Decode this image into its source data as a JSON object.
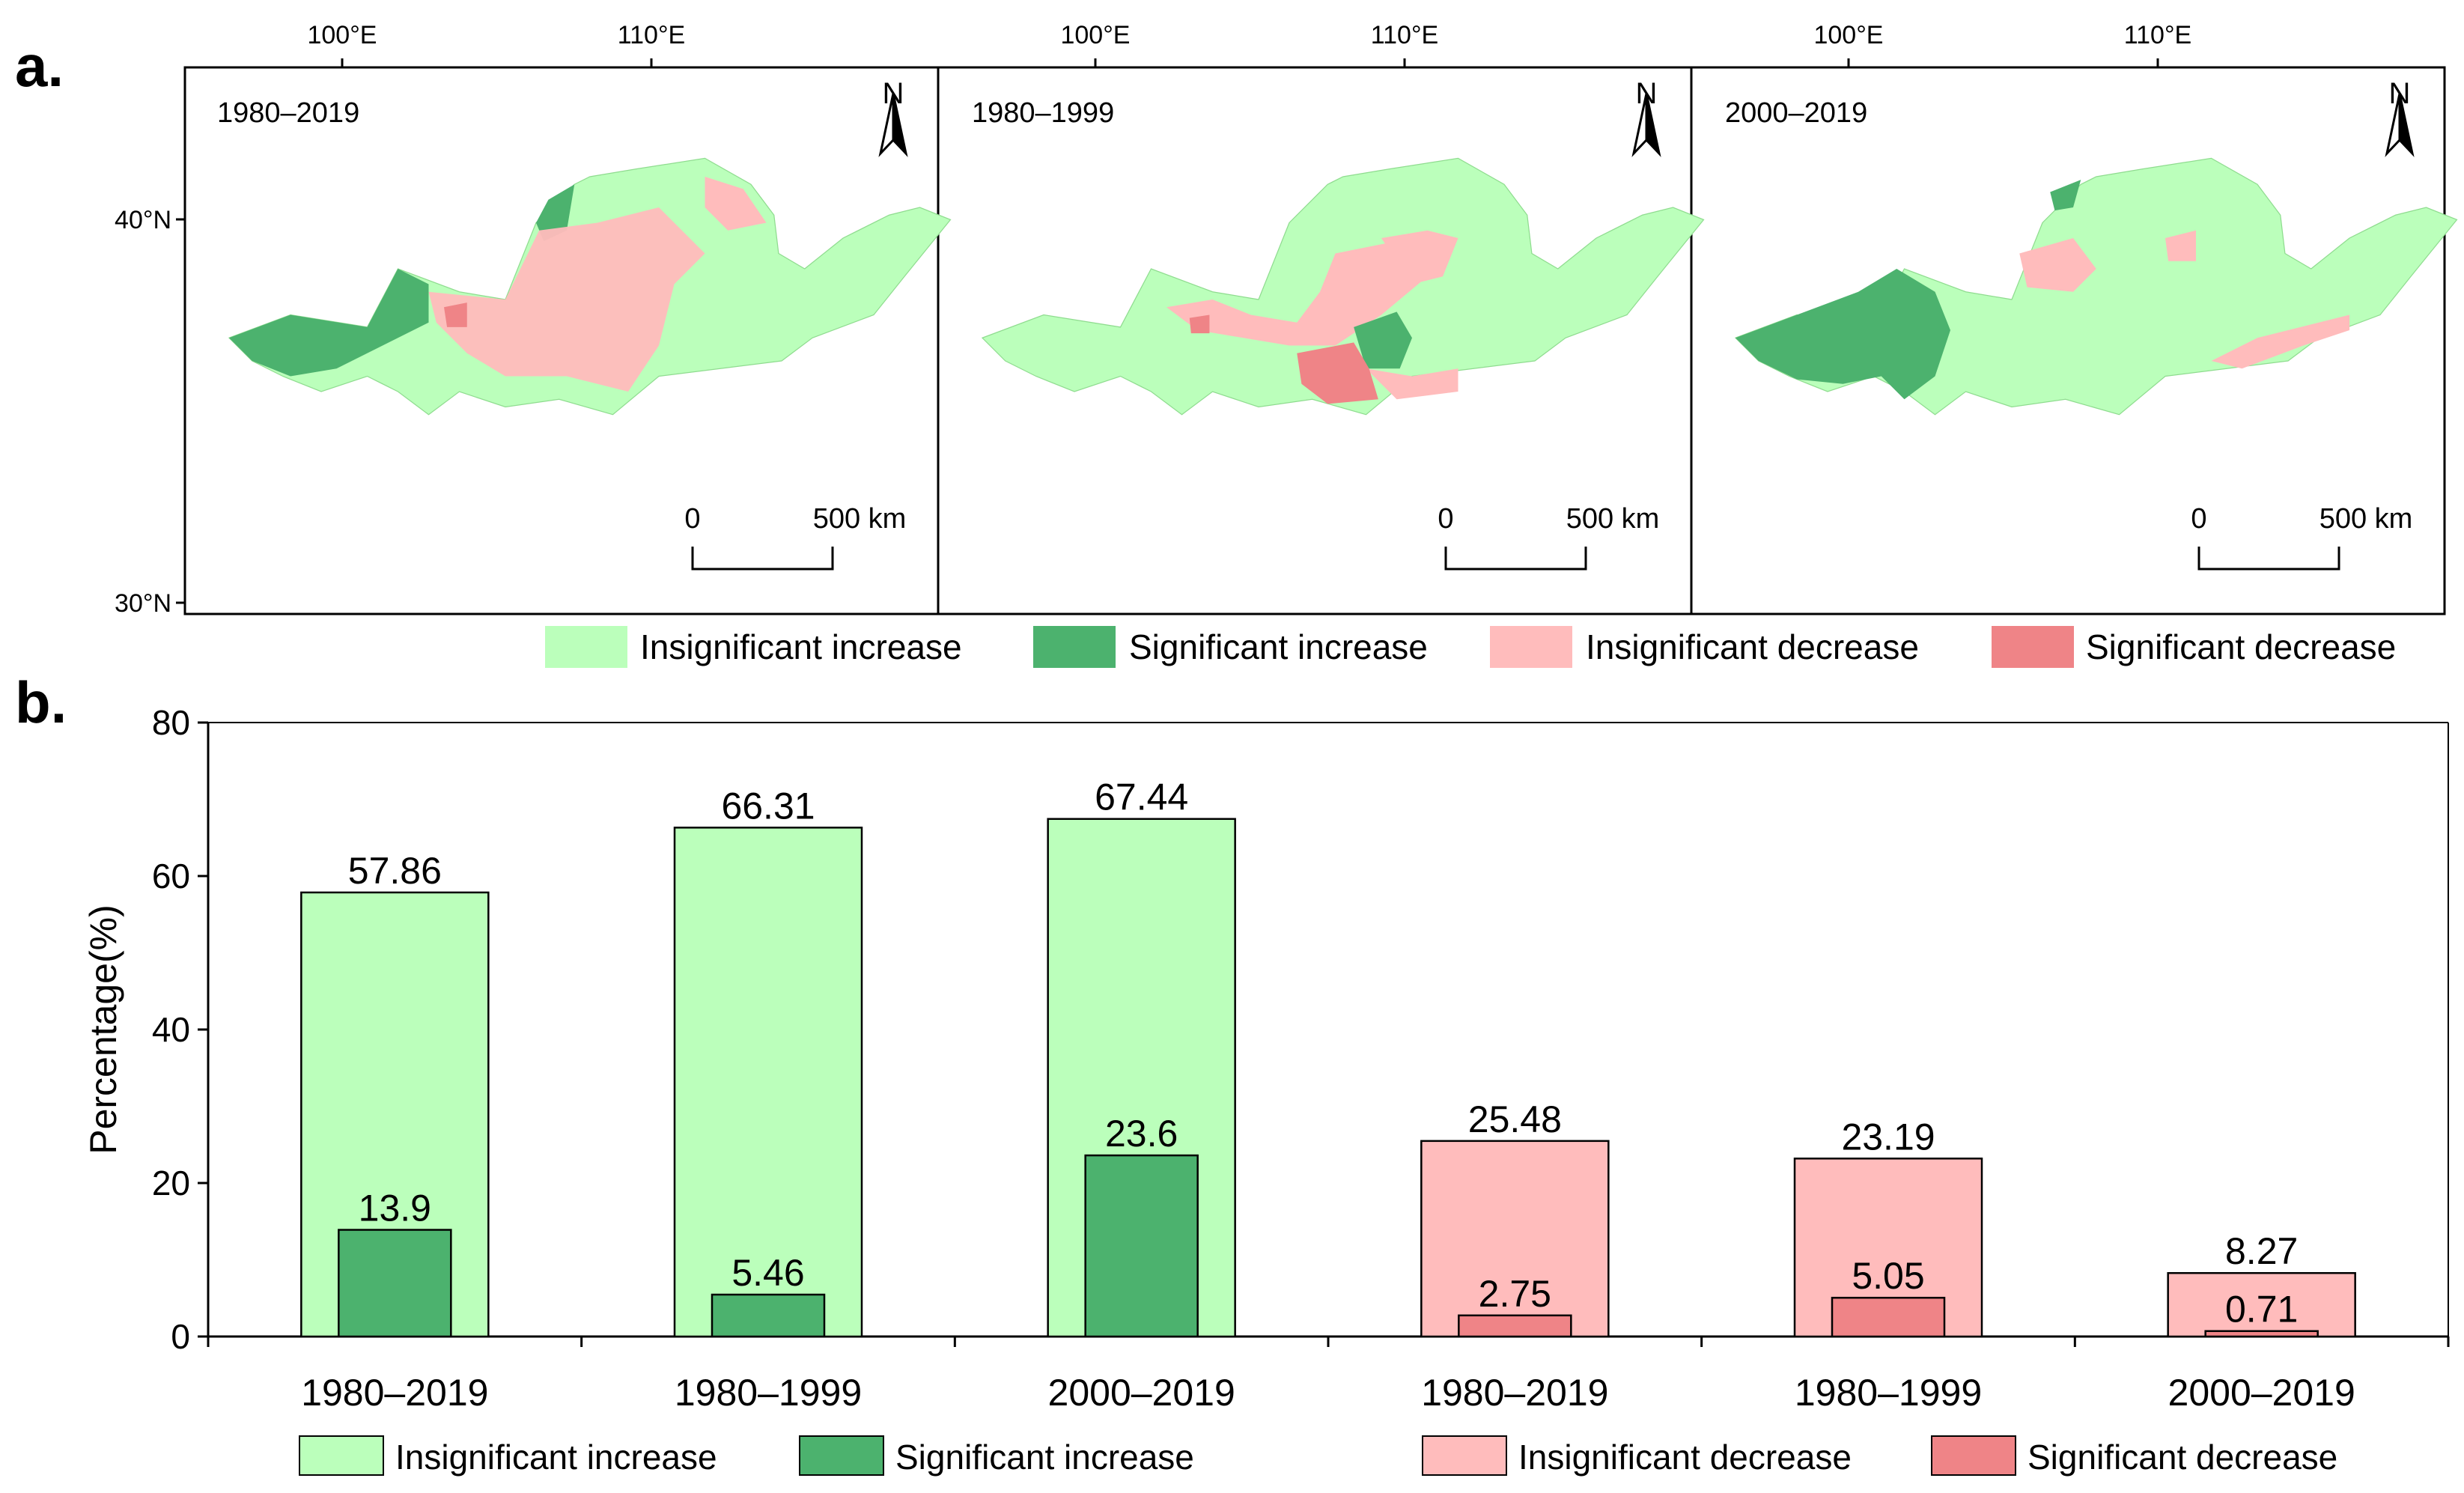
{
  "panel_a": {
    "label": "a.",
    "lon_ticks": [
      "100°E",
      "110°E"
    ],
    "lat_ticks": [
      "40°N",
      "30°N"
    ],
    "north_label": "N",
    "scale_zero": "0",
    "scale_end": "500 km",
    "maps": [
      {
        "period": "1980–2019"
      },
      {
        "period": "1980–1999"
      },
      {
        "period": "2000–2019"
      }
    ],
    "legend": [
      {
        "label": "Insignificant increase",
        "color": "#bbffbb"
      },
      {
        "label": "Significant increase",
        "color": "#4cb26e"
      },
      {
        "label": "Insignificant decrease",
        "color": "#ffbcbc"
      },
      {
        "label": "Significant decrease",
        "color": "#ef8487"
      }
    ]
  },
  "panel_b": {
    "label": "b."
  },
  "chart_data": {
    "type": "bar",
    "ylabel": "Percentage(%)",
    "ylim": [
      0,
      80
    ],
    "yticks": [
      "0",
      "20",
      "40",
      "60",
      "80"
    ],
    "groups": [
      {
        "period": "1980–2019",
        "outer": 57.86,
        "inner": 13.9,
        "outer_label": "57.86",
        "inner_label": "13.9",
        "kind": "increase"
      },
      {
        "period": "1980–1999",
        "outer": 66.31,
        "inner": 5.46,
        "outer_label": "66.31",
        "inner_label": "5.46",
        "kind": "increase"
      },
      {
        "period": "2000–2019",
        "outer": 67.44,
        "inner": 23.6,
        "outer_label": "67.44",
        "inner_label": "23.6",
        "kind": "increase"
      },
      {
        "period": "1980–2019",
        "outer": 25.48,
        "inner": 2.75,
        "outer_label": "25.48",
        "inner_label": "2.75",
        "kind": "decrease"
      },
      {
        "period": "1980–1999",
        "outer": 23.19,
        "inner": 5.05,
        "outer_label": "23.19",
        "inner_label": "5.05",
        "kind": "decrease"
      },
      {
        "period": "2000–2019",
        "outer": 8.27,
        "inner": 0.71,
        "outer_label": "8.27",
        "inner_label": "0.71",
        "kind": "decrease"
      }
    ],
    "legend": [
      {
        "label": "Insignificant increase",
        "color": "#bbffbb"
      },
      {
        "label": "Significant increase",
        "color": "#4cb26e"
      },
      {
        "label": "Insignificant decrease",
        "color": "#ffbcbc"
      },
      {
        "label": "Significant decrease",
        "color": "#ef8487"
      }
    ]
  }
}
